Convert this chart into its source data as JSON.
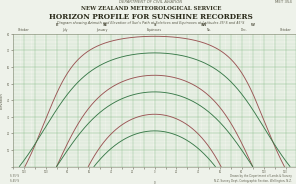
{
  "title1": "DEPARTMENT OF CIVIL AVIATION",
  "title2": "NEW ZEALAND METEOROLOGICAL SERVICE",
  "title3": "HORIZON PROFILE FOR SUNSHINE RECORDERS",
  "subtitle": "Diagram showing Azimuth and Elevation of Sun's Path at Solstices and Equinoxes at Latitudes 35°S and 45°S",
  "ref": "MET 354",
  "bg_color": "#eef2ea",
  "grid_color_minor": "#b8d8b8",
  "grid_color_major": "#90c090",
  "lat35_color": "#9b5555",
  "lat45_color": "#3a7a4a",
  "az_min": -130,
  "az_max": 130,
  "el_min": 0,
  "el_max": 80,
  "cardinal_labels": [
    [
      "October",
      -120
    ],
    [
      "July",
      -80
    ],
    [
      "January",
      -50
    ],
    [
      "Equinoxes",
      0
    ],
    [
      "No.",
      60
    ],
    [
      "December",
      90
    ]
  ],
  "footnote_left1": "S 35°S",
  "footnote_left2": "S 45°S",
  "footnote_right1": "Drawn by the Department of Lands & Survey",
  "footnote_right2": "N.Z. Survey Dept, Cartographic Section, Wellington, N.Z."
}
